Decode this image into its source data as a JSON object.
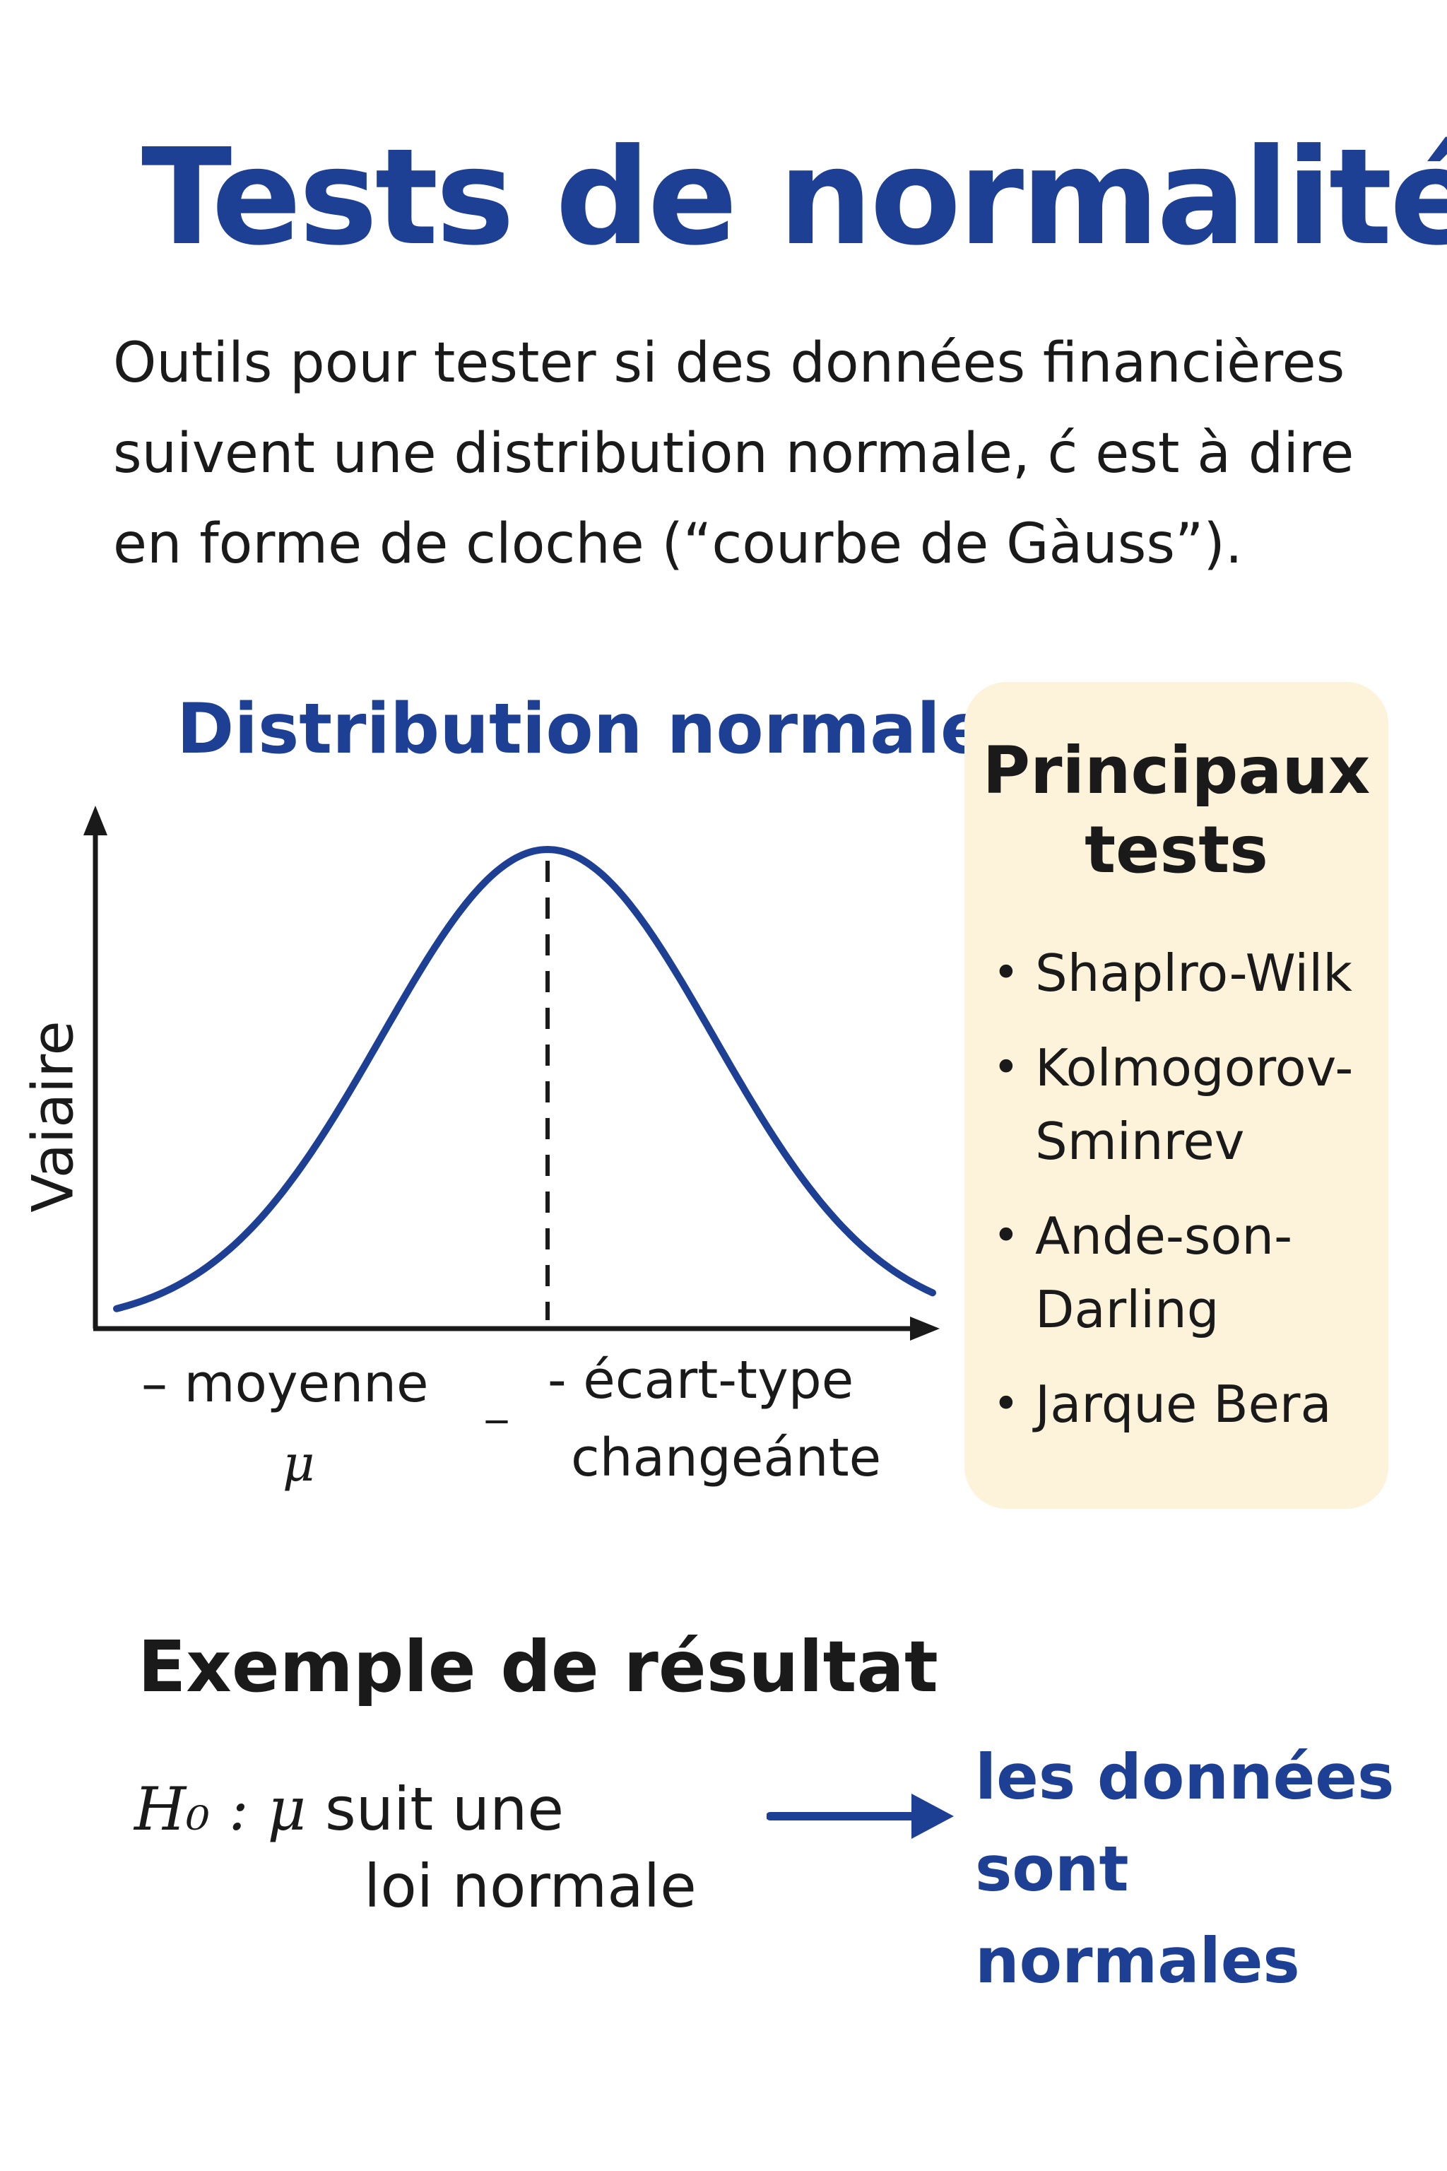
{
  "title": "Tests de normalité",
  "intro": "Outils pour tester si des données financières suivent une distribution normale, ć est à dire en forme de cloche (“courbe de Gàuss”).",
  "distribution": {
    "title": "Distribution normale",
    "y_axis_label": "Vaiaire",
    "x_label_left": "– moyenne",
    "x_label_mu": "μ",
    "x_label_separator": "_",
    "x_label_right_line1": "- écart-type",
    "x_label_right_line2": "changeánte",
    "curve_color": "#1d3f94"
  },
  "tests": {
    "heading_line1": "Principaux",
    "heading_line2": "tests",
    "items": [
      "Shaplro-Wilk",
      "Kolmogorov-Sminrev",
      "Ande-son-Darling",
      "Jarque Bera"
    ]
  },
  "example": {
    "title": "Exemple de résultat",
    "h0": "H₀ :",
    "mu": "μ",
    "statement_line1": "suit une",
    "statement_line2": "loi normale",
    "conclusion_line1": "les données",
    "conclusion_line2": "sont normales"
  },
  "colors": {
    "accent_blue": "#1d3f94",
    "panel_background": "#fdf2da"
  }
}
